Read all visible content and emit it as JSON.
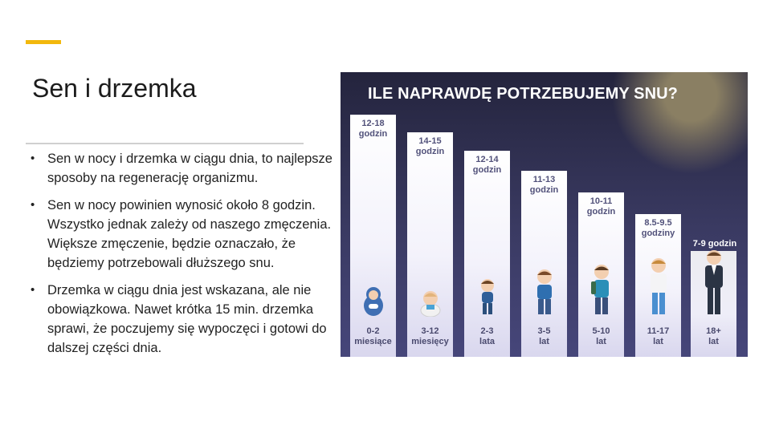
{
  "slide": {
    "title": "Sen i drzemka",
    "bullets": [
      "Sen w nocy i drzemka w ciągu dnia, to najlepsze sposoby na regenerację organizmu.",
      "Sen w nocy powinien wynosić około 8 godzin. Wszystko jednak zależy od naszego zmęczenia. Większe zmęczenie, będzie oznaczało, że będziemy potrzebowali dłuższego snu.",
      "Drzemka w ciągu dnia jest wskazana, ale nie obowiązkowa. Nawet krótka 15 min. drzemka sprawi, że poczujemy się wypoczęci i gotowi do dalszej części dnia."
    ],
    "accent_color": "#f2b80c"
  },
  "infographic": {
    "heading": "ILE NAPRAWDĘ POTRZEBUJEMY SNU?",
    "groups": [
      {
        "hours_1": "12-18",
        "hours_2": "godzin",
        "age_1": "0-2",
        "age_2": "miesiące"
      },
      {
        "hours_1": "14-15",
        "hours_2": "godzin",
        "age_1": "3-12",
        "age_2": "miesięcy"
      },
      {
        "hours_1": "12-14",
        "hours_2": "godzin",
        "age_1": "2-3",
        "age_2": "lata"
      },
      {
        "hours_1": "11-13",
        "hours_2": "godzin",
        "age_1": "3-5",
        "age_2": "lat"
      },
      {
        "hours_1": "10-11",
        "hours_2": "godzin",
        "age_1": "5-10",
        "age_2": "lat"
      },
      {
        "hours_1": "8.5-9.5",
        "hours_2": "godziny",
        "age_1": "11-17",
        "age_2": "lat"
      },
      {
        "hours_1": "7-9 godzin",
        "hours_2": "",
        "age_1": "18+",
        "age_2": "lat"
      }
    ]
  }
}
